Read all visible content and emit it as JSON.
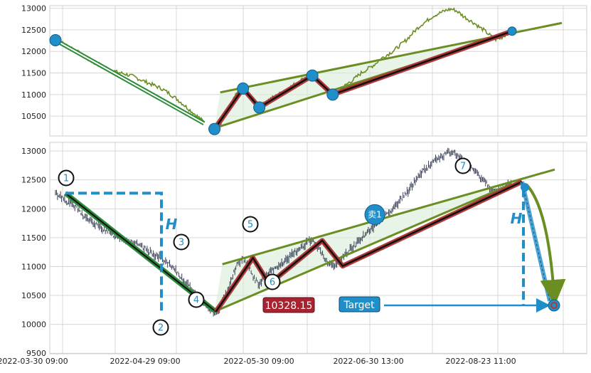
{
  "chart_data": [
    {
      "type": "line",
      "panel": "top",
      "ylim": [
        10040,
        13060
      ],
      "y_ticks": [
        "10500",
        "11000",
        "11500",
        "12000",
        "12500",
        "13000"
      ],
      "y_tick_values": [
        10500,
        11000,
        11500,
        12000,
        12500,
        13000
      ],
      "grid": true,
      "series": [
        {
          "values": [
            12260,
            12230,
            12180,
            12120,
            12080,
            12020,
            11950,
            11870,
            11820,
            11760,
            11720,
            11680,
            11640,
            11600,
            11560,
            11520,
            11500,
            11480,
            11450,
            11420,
            11380,
            11340,
            11300,
            11260,
            11220,
            11180,
            11140,
            11080,
            11020,
            10950,
            10880,
            10800,
            10720,
            10640,
            10560,
            10480,
            10400,
            10330,
            10260,
            10200,
            10230,
            10380,
            10560,
            10760,
            10950,
            11080,
            11140,
            11060,
            10900,
            10760,
            10700,
            10780,
            10860,
            10920,
            10960,
            11020,
            11080,
            11140,
            11200,
            11260,
            11320,
            11380,
            11430,
            11430,
            11360,
            11260,
            11160,
            11060,
            11000,
            11040,
            11120,
            11200,
            11280,
            11340,
            11420,
            11500,
            11560,
            11620,
            11680,
            11760,
            11840,
            11900,
            11960,
            12020,
            12100,
            12180,
            12260,
            12360,
            12460,
            12560,
            12640,
            12700,
            12780,
            12840,
            12880,
            12920,
            12960,
            12980,
            12960,
            12900,
            12820,
            12760,
            12700,
            12640,
            12560,
            12500,
            12420,
            12340,
            12280,
            12300,
            12360,
            12420,
            12460
          ],
          "color": "#6b8e23"
        }
      ],
      "pivots": [
        {
          "i": 0,
          "y": 12260
        },
        {
          "i": 39,
          "y": 10200
        },
        {
          "i": 46,
          "y": 11140
        },
        {
          "i": 50,
          "y": 10700
        },
        {
          "i": 63,
          "y": 11440
        },
        {
          "i": 68,
          "y": 11000
        },
        {
          "i": 112,
          "y": 12470
        }
      ]
    },
    {
      "type": "line",
      "panel": "bottom",
      "ylim": [
        9490,
        13150
      ],
      "y_ticks": [
        "9500",
        "10000",
        "10500",
        "11000",
        "11500",
        "12000",
        "12500",
        "13000"
      ],
      "y_tick_values": [
        9500,
        10000,
        10500,
        11000,
        11500,
        12000,
        12500,
        13000
      ],
      "x_ticks": [
        "2022-03-30 09:00",
        "2022-04-29 09:00",
        "2022-05-30 09:00",
        "2022-06-30 13:00",
        "2022-08-23 11:00"
      ],
      "grid": true,
      "points": [
        {
          "label": "1",
          "i": 0,
          "y": 12270
        },
        {
          "label": "2",
          "i": 39,
          "y": 10220
        },
        {
          "label": "3",
          "i": 46,
          "y": 11150
        },
        {
          "label": "4",
          "i": 50,
          "y": 10700
        },
        {
          "label": "5",
          "i": 63,
          "y": 11450
        },
        {
          "label": "6",
          "i": 68,
          "y": 11010
        },
        {
          "label": "7",
          "i": 112,
          "y": 12470
        }
      ],
      "pattern_height_label": "H",
      "sell_marker": "卖1",
      "target_label": "Target",
      "target_value": "10328.15",
      "target_y": 10328.15
    }
  ],
  "colors": {
    "price_top": "#6b8e23",
    "price_bottom": "#3b4257",
    "wedge_line": "#6b8e23",
    "wedge_fill": "#d8ecd8",
    "zigzag_outer": "#b03a3a",
    "zigzag_inner": "#111111",
    "down_leg": "#2e8b3a",
    "pivot_blue": "#1f8ec9",
    "dash_blue": "#1f8ec9",
    "target_box": "#1f8ec9",
    "value_box": "#a8232f"
  }
}
